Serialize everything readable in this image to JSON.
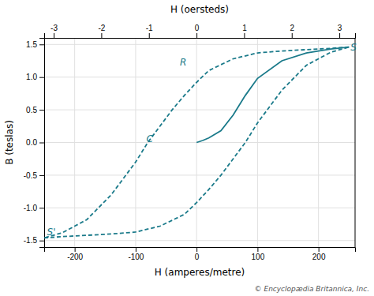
{
  "chart_data": {
    "type": "line",
    "xlabel": "H (amperes/metre)",
    "ylabel": "B (teslas)",
    "x2label": "H (oersteds)",
    "footnote": "© Encyclopædia Britannica, Inc.",
    "xlim": [
      -250,
      260
    ],
    "ylim": [
      -1.6,
      1.6
    ],
    "xticks": [
      -200,
      -100,
      0,
      100,
      200
    ],
    "yticks": [
      -1.5,
      {
        "value": -1.0,
        "label": "-1.0"
      },
      -0.5,
      {
        "value": 0,
        "label": "0.0"
      },
      0.5,
      {
        "value": 1.0,
        "label": "1.0"
      },
      1.5
    ],
    "x2lim": [
      -3.2,
      3.33
    ],
    "x2ticks": [
      -3,
      -2,
      -1,
      0,
      1,
      2,
      3
    ],
    "grid": true,
    "annotations": [
      {
        "text": "S",
        "x": 250,
        "y": 1.45
      },
      {
        "text": "S'",
        "x": -248,
        "y": -1.38
      },
      {
        "text": "R",
        "x": -30,
        "y": 1.22
      },
      {
        "text": "C",
        "x": -85,
        "y": 0.05
      }
    ],
    "series": [
      {
        "color": "#1a7a8a",
        "line_style": "solid",
        "x": [
          0,
          10,
          20,
          40,
          60,
          80,
          100,
          140,
          180,
          220,
          250
        ],
        "values": [
          0.0,
          0.03,
          0.07,
          0.18,
          0.42,
          0.72,
          0.98,
          1.25,
          1.37,
          1.43,
          1.46
        ]
      },
      {
        "color": "#1a7a8a",
        "line_style": "dashed",
        "x": [
          250,
          220,
          180,
          140,
          100,
          60,
          20,
          0,
          -20,
          -40,
          -60,
          -80,
          -100,
          -120,
          -140,
          -180,
          -220,
          -250
        ],
        "values": [
          1.46,
          1.44,
          1.42,
          1.4,
          1.37,
          1.28,
          1.1,
          0.92,
          0.72,
          0.5,
          0.25,
          0.0,
          -0.3,
          -0.55,
          -0.8,
          -1.18,
          -1.38,
          -1.46
        ]
      },
      {
        "color": "#1a7a8a",
        "line_style": "dashed",
        "x": [
          -250,
          -220,
          -180,
          -140,
          -100,
          -60,
          -20,
          0,
          20,
          40,
          60,
          80,
          100,
          120,
          140,
          180,
          220,
          250
        ],
        "values": [
          -1.46,
          -1.44,
          -1.42,
          -1.4,
          -1.37,
          -1.28,
          -1.1,
          -0.92,
          -0.72,
          -0.5,
          -0.25,
          0.0,
          0.3,
          0.55,
          0.8,
          1.18,
          1.38,
          1.46
        ]
      }
    ]
  }
}
